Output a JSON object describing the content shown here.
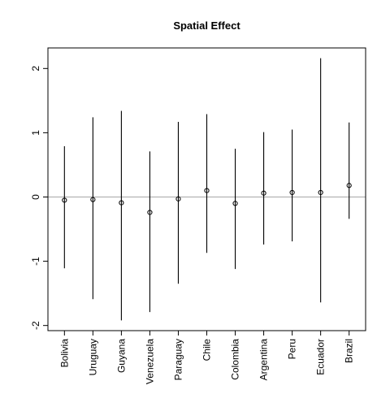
{
  "chart_data": {
    "type": "scatter",
    "title": "Spatial Effect",
    "xlabel": "",
    "ylabel": "",
    "categories": [
      "Bolivia",
      "Uruguay",
      "Guyana",
      "Venezuela",
      "Paraguay",
      "Chile",
      "Colombia",
      "Argentina",
      "Peru",
      "Ecuador",
      "Brazil"
    ],
    "series": [
      {
        "values": [
          -0.05,
          -0.04,
          -0.09,
          -0.24,
          -0.03,
          0.1,
          -0.1,
          0.06,
          0.07,
          0.07,
          0.18
        ],
        "lower": [
          -1.11,
          -1.59,
          -1.92,
          -1.79,
          -1.35,
          -0.87,
          -1.12,
          -0.74,
          -0.69,
          -1.64,
          -0.34
        ],
        "upper": [
          0.79,
          1.24,
          1.34,
          0.71,
          1.17,
          1.29,
          0.75,
          1.01,
          1.05,
          2.16,
          1.16
        ]
      }
    ],
    "reference_line": {
      "y": 0,
      "color": "#b3b3b3"
    },
    "y_ticks": [
      "-2",
      "-1",
      "0",
      "1",
      "2"
    ],
    "ylim": [
      -2.08,
      2.32
    ],
    "grid": false,
    "legend": "none"
  }
}
